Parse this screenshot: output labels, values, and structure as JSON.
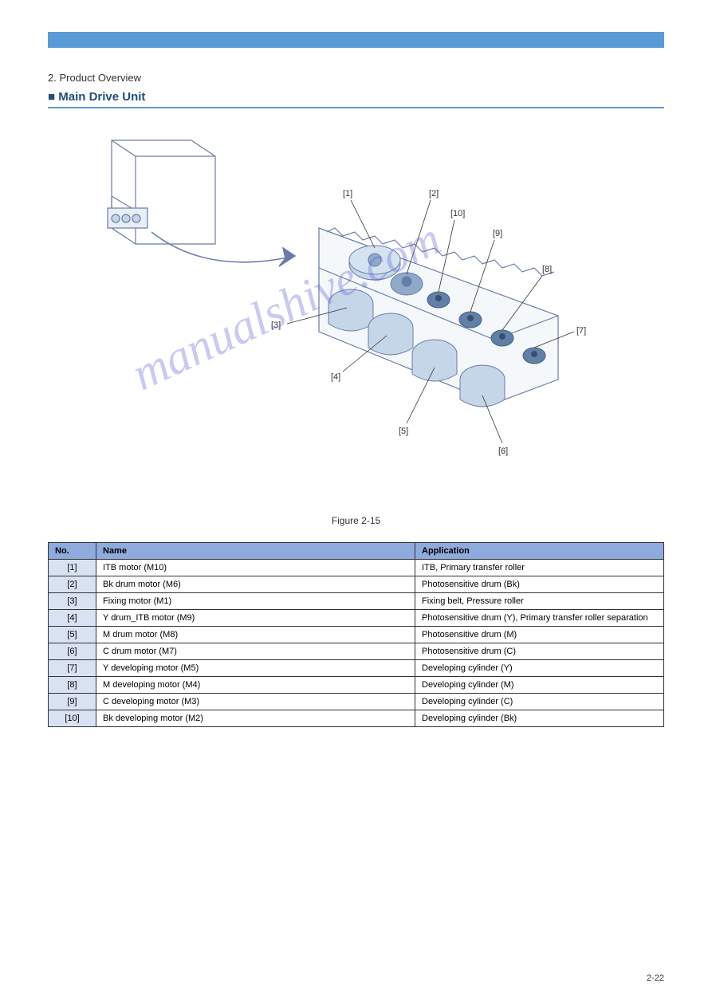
{
  "header": {
    "chapter": "2. Product Overview",
    "section": "■ Main Drive Unit"
  },
  "figure": {
    "caption": "Figure 2-15",
    "callouts": [
      "[1]",
      "[2]",
      "[3]",
      "[4]",
      "[5]",
      "[6]",
      "[7]",
      "[8]",
      "[9]",
      "[10]"
    ],
    "colors": {
      "line": "#6b7ba8",
      "fill_light": "#c5d6e8",
      "fill_med": "#8faac8",
      "fill_dark": "#6080a8",
      "bg": "#e8eef5"
    }
  },
  "table": {
    "columns": [
      "No.",
      "Name",
      "Application"
    ],
    "rows": [
      [
        "[1]",
        "ITB motor (M10)",
        "ITB, Primary transfer roller"
      ],
      [
        "[2]",
        "Bk drum motor (M6)",
        "Photosensitive drum (Bk)"
      ],
      [
        "[3]",
        "Fixing motor (M1)",
        "Fixing belt, Pressure roller"
      ],
      [
        "[4]",
        "Y drum_ITB motor (M9)",
        "Photosensitive drum (Y), Primary transfer roller separation"
      ],
      [
        "[5]",
        "M drum motor (M8)",
        "Photosensitive drum (M)"
      ],
      [
        "[6]",
        "C drum motor (M7)",
        "Photosensitive drum (C)"
      ],
      [
        "[7]",
        "Y developing motor (M5)",
        "Developing cylinder (Y)"
      ],
      [
        "[8]",
        "M developing motor (M4)",
        "Developing cylinder (M)"
      ],
      [
        "[9]",
        "C developing motor (M3)",
        "Developing cylinder (C)"
      ],
      [
        "[10]",
        "Bk developing motor (M2)",
        "Developing cylinder (Bk)"
      ]
    ],
    "header_bg": "#8faadc",
    "row_header_bg": "#d9e2f3"
  },
  "watermark": "manualshive.com",
  "page_number": "2-22"
}
